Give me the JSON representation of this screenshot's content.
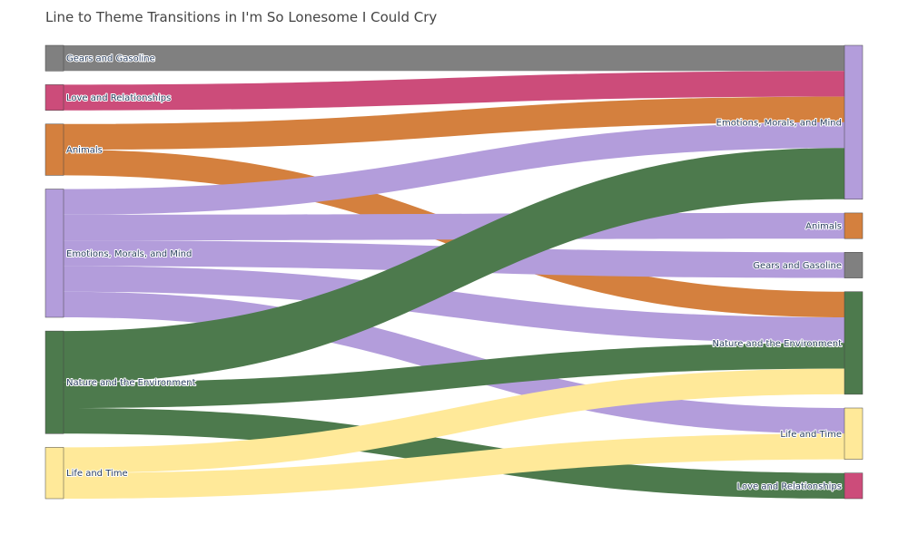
{
  "chart_data": {
    "type": "sankey",
    "title": "Line to Theme Transitions in I'm So Lonesome I Could Cry",
    "colors": {
      "Gears and Gasoline": "#808080",
      "Love and Relationships": "#cc4c7a",
      "Animals": "#d4803e",
      "Emotions, Morals, and Mind": "#b39ddb",
      "Nature and the Environment": "#4d7a4d",
      "Life and Time": "#ffe999"
    },
    "source_nodes": [
      "Gears and Gasoline",
      "Love and Relationships",
      "Animals",
      "Emotions, Morals, and Mind",
      "Nature and the Environment",
      "Life and Time"
    ],
    "target_nodes": [
      "Emotions, Morals, and Mind",
      "Animals",
      "Gears and Gasoline",
      "Nature and the Environment",
      "Life and Time",
      "Love and Relationships"
    ],
    "links": [
      {
        "source": "Gears and Gasoline",
        "target": "Emotions, Morals, and Mind",
        "value": 1
      },
      {
        "source": "Love and Relationships",
        "target": "Emotions, Morals, and Mind",
        "value": 1
      },
      {
        "source": "Animals",
        "target": "Emotions, Morals, and Mind",
        "value": 1
      },
      {
        "source": "Animals",
        "target": "Nature and the Environment",
        "value": 1
      },
      {
        "source": "Emotions, Morals, and Mind",
        "target": "Emotions, Morals, and Mind",
        "value": 1
      },
      {
        "source": "Emotions, Morals, and Mind",
        "target": "Animals",
        "value": 1
      },
      {
        "source": "Emotions, Morals, and Mind",
        "target": "Gears and Gasoline",
        "value": 1
      },
      {
        "source": "Emotions, Morals, and Mind",
        "target": "Nature and the Environment",
        "value": 1
      },
      {
        "source": "Emotions, Morals, and Mind",
        "target": "Life and Time",
        "value": 1
      },
      {
        "source": "Nature and the Environment",
        "target": "Emotions, Morals, and Mind",
        "value": 2
      },
      {
        "source": "Nature and the Environment",
        "target": "Nature and the Environment",
        "value": 1
      },
      {
        "source": "Nature and the Environment",
        "target": "Love and Relationships",
        "value": 1
      },
      {
        "source": "Life and Time",
        "target": "Nature and the Environment",
        "value": 1
      },
      {
        "source": "Life and Time",
        "target": "Life and Time",
        "value": 1
      }
    ]
  }
}
